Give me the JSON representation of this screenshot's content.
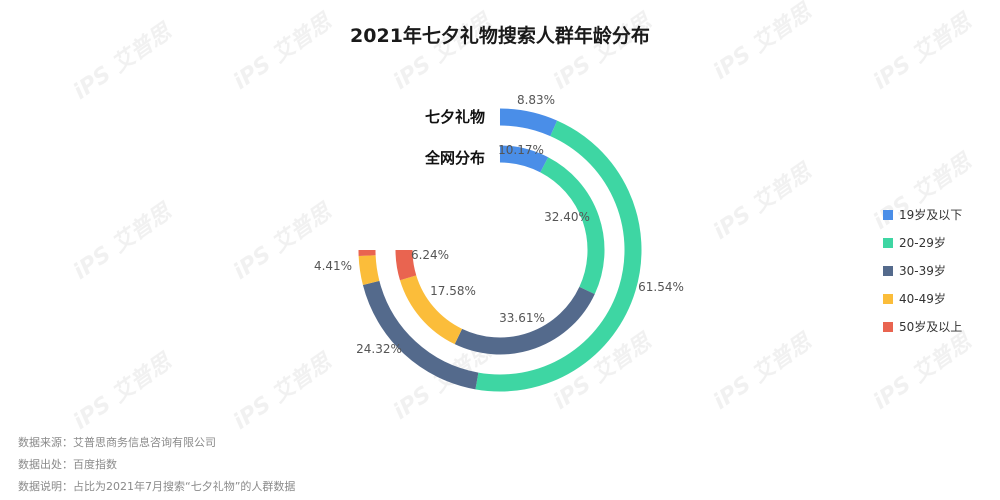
{
  "chart_data": {
    "type": "donut",
    "title": "2021年七夕礼物搜索人群年龄分布",
    "categories": [
      "19岁及以下",
      "20-29岁",
      "30-39岁",
      "40-49岁",
      "50岁及以上"
    ],
    "series": [
      {
        "name": "七夕礼物",
        "values": [
          8.83,
          61.54,
          24.32,
          4.41,
          0.9
        ],
        "labels": [
          "8.83%",
          "61.54%",
          "24.32%",
          "4.41%",
          ""
        ]
      },
      {
        "name": "全网分布",
        "values": [
          10.17,
          32.4,
          33.61,
          17.58,
          6.24
        ],
        "labels": [
          "10.17%",
          "32.40%",
          "33.61%",
          "17.58%",
          "6.24%"
        ]
      }
    ],
    "arc_span_degrees": 270,
    "legend_position": "right",
    "colors": [
      "#4a8ee8",
      "#3ed6a3",
      "#546a8c",
      "#fbbd3a",
      "#e96450"
    ]
  },
  "footer": {
    "source": "数据来源：艾普思商务信息咨询有限公司",
    "origin": "数据出处：百度指数",
    "note": "数据说明：占比为2021年7月搜索“七夕礼物”的人群数据"
  },
  "watermark": "iPS 艾普思"
}
